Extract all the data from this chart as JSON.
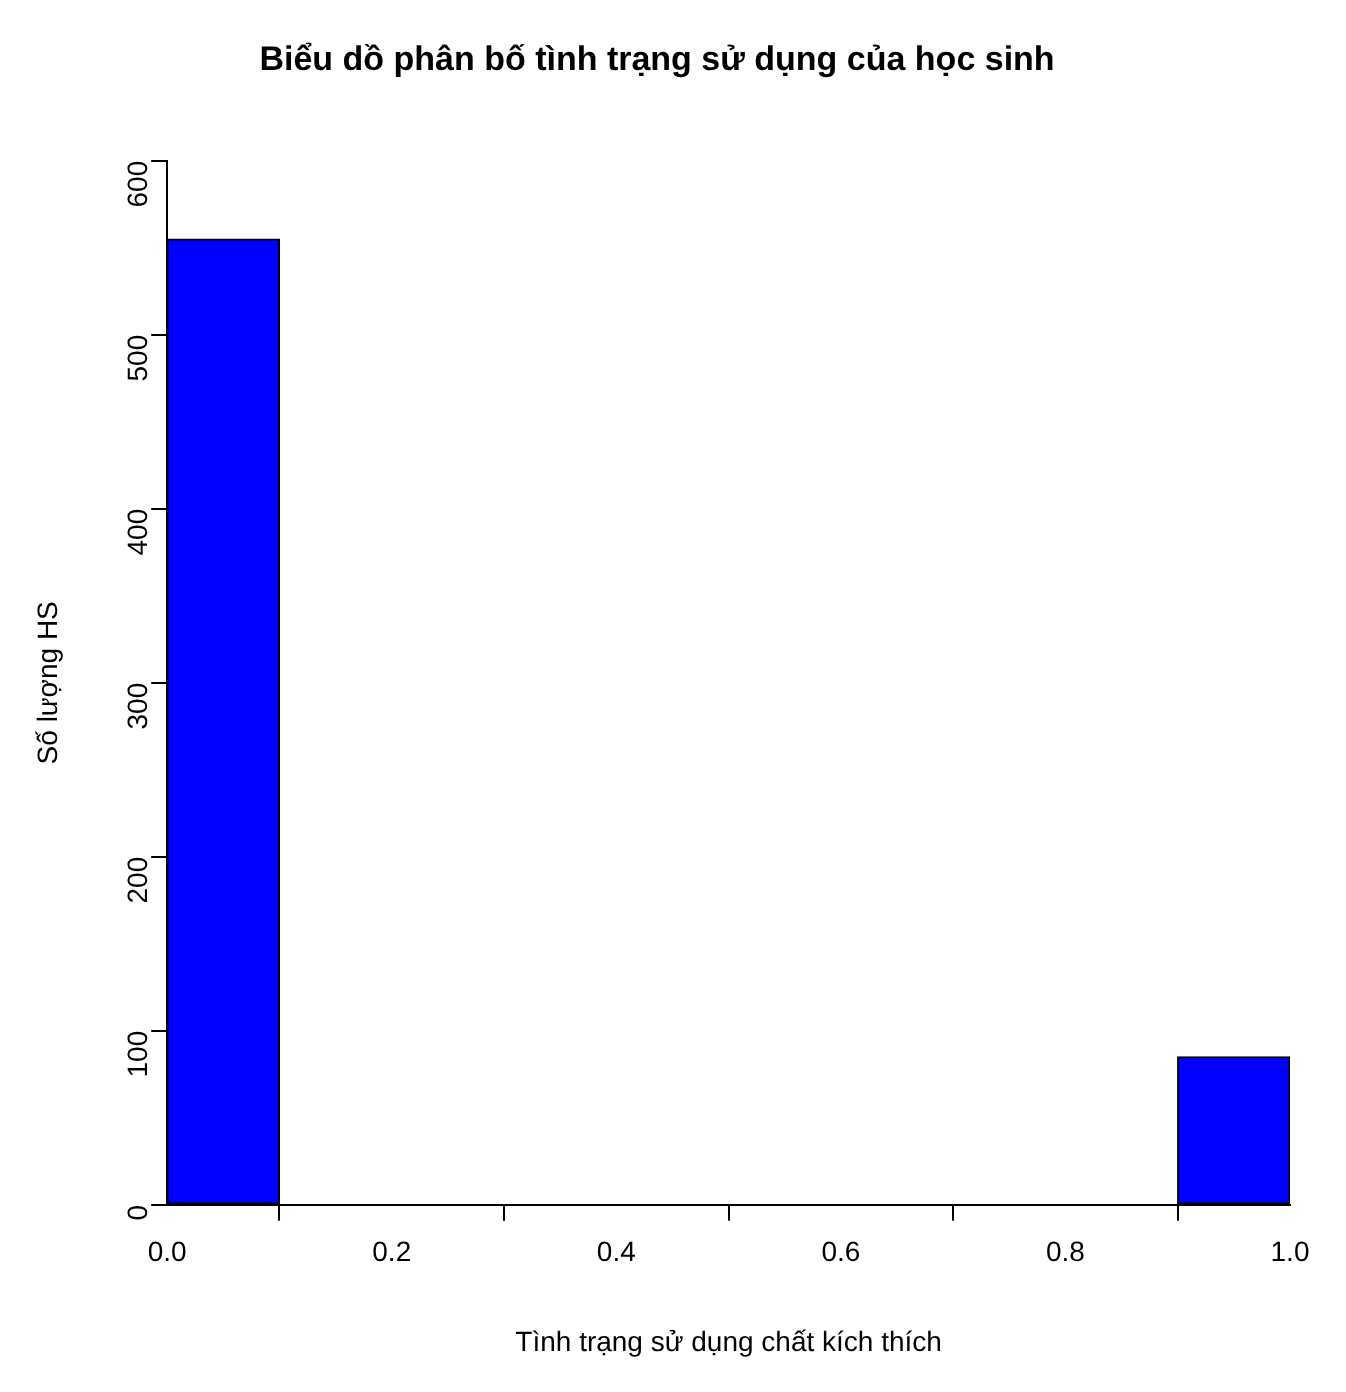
{
  "chart_data": {
    "type": "histogram",
    "title": "Biểu dồ phân bố tình trạng sử dụng của học sinh",
    "xlabel": "Tình trạng sử dụng chất kích thích",
    "ylabel": "Số lượng HS",
    "bins": [
      0,
      0.1,
      0.2,
      0.3,
      0.4,
      0.5,
      0.6,
      0.7,
      0.8,
      0.9,
      1.0
    ],
    "values": [
      555,
      0,
      0,
      0,
      0,
      0,
      0,
      0,
      0,
      85
    ],
    "color": "#0000ff",
    "xlim": [
      0,
      1
    ],
    "xticks": [
      {
        "value": 0,
        "label": "0.0"
      },
      0.2,
      0.4,
      0.6,
      0.8,
      {
        "value": 1,
        "label": "1.0"
      }
    ],
    "ylim": [
      0,
      600
    ],
    "yticks": [
      0,
      100,
      200,
      300,
      400,
      500,
      600
    ],
    "grid": false,
    "legend": false
  }
}
